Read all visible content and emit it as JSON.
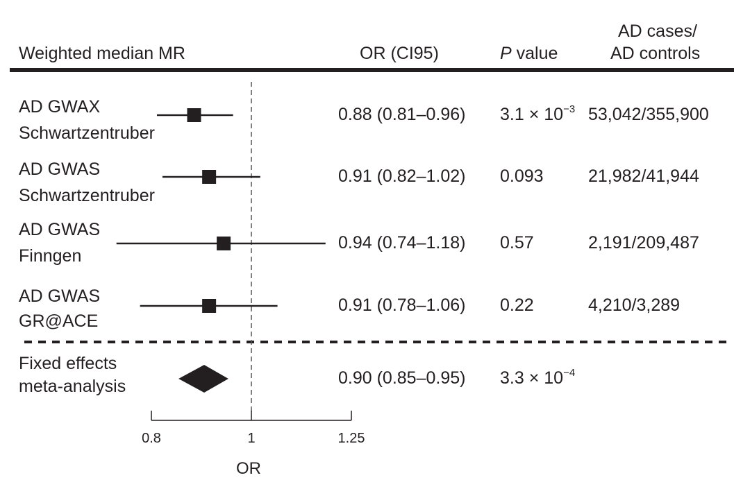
{
  "chart_data": {
    "type": "forest",
    "title": "",
    "method_label": "Weighted median MR",
    "columns": {
      "or": "OR (CI95)",
      "p_italic": "P",
      "p_rest": " value",
      "cases_line1": "AD cases/",
      "cases_line2": "AD controls"
    },
    "xlabel": "OR",
    "x_scale": "log",
    "xlim": [
      0.8,
      1.25
    ],
    "xticks": [
      0.8,
      1,
      1.25
    ],
    "xtick_labels": [
      "0.8",
      "1",
      "1.25"
    ],
    "reference_line": 1,
    "studies": [
      {
        "label1": "AD GWAX",
        "label2": "Schwartzentruber",
        "or": 0.88,
        "lo": 0.81,
        "hi": 0.96,
        "or_text": "0.88 (0.81–0.96)",
        "p_base": "3.1 × 10",
        "p_exp": "−3",
        "cases": "53,042/355,900"
      },
      {
        "label1": "AD GWAS",
        "label2": "Schwartzentruber",
        "or": 0.91,
        "lo": 0.82,
        "hi": 1.02,
        "or_text": "0.91 (0.82–1.02)",
        "p_base": "0.093",
        "p_exp": "",
        "cases": "21,982/41,944"
      },
      {
        "label1": "AD GWAS",
        "label2": "Finngen",
        "or": 0.94,
        "lo": 0.74,
        "hi": 1.18,
        "or_text": "0.94 (0.74–1.18)",
        "p_base": "0.57",
        "p_exp": "",
        "cases": "2,191/209,487"
      },
      {
        "label1": "AD GWAS",
        "label2": "GR@ACE",
        "or": 0.91,
        "lo": 0.78,
        "hi": 1.06,
        "or_text": "0.91 (0.78–1.06)",
        "p_base": "0.22",
        "p_exp": "",
        "cases": "4,210/3,289"
      }
    ],
    "meta": {
      "label1": "Fixed effects",
      "label2": "meta-analysis",
      "or": 0.9,
      "lo": 0.85,
      "hi": 0.95,
      "or_text": "0.90 (0.85–0.95)",
      "p_base": "3.3 × 10",
      "p_exp": "−4",
      "cases": ""
    }
  }
}
